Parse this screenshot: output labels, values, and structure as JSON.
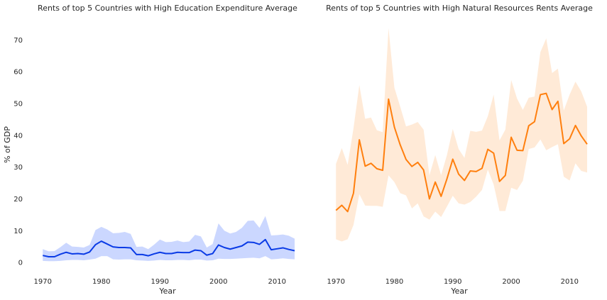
{
  "chart_data": [
    {
      "type": "line",
      "title": "Rents of top 5 Countries with High Education Expenditure Average",
      "xlabel": "Year",
      "ylabel": "% of GDP",
      "xlim": [
        1969,
        2013
      ],
      "ylim": [
        -4,
        77
      ],
      "xticks": [
        1970,
        1980,
        1990,
        2000,
        2010
      ],
      "yticks": [
        0,
        10,
        20,
        30,
        40,
        50,
        60,
        70
      ],
      "grid": false,
      "series": [
        {
          "color": "#0a3be6",
          "band_color": "#a9bcff",
          "x": [
            1970,
            1971,
            1972,
            1973,
            1974,
            1975,
            1976,
            1977,
            1978,
            1979,
            1980,
            1981,
            1982,
            1983,
            1984,
            1985,
            1986,
            1987,
            1988,
            1989,
            1990,
            1991,
            1992,
            1993,
            1994,
            1995,
            1996,
            1997,
            1998,
            1999,
            2000,
            2001,
            2002,
            2003,
            2004,
            2005,
            2006,
            2007,
            2008,
            2009,
            2010,
            2011,
            2012,
            2013
          ],
          "y": [
            2.2,
            1.8,
            1.8,
            2.6,
            3.2,
            2.7,
            2.8,
            2.6,
            3.3,
            5.6,
            6.7,
            5.8,
            4.9,
            4.7,
            4.7,
            4.6,
            2.5,
            2.5,
            2.1,
            2.7,
            3.2,
            2.8,
            2.8,
            3.2,
            3.1,
            3.1,
            3.9,
            3.7,
            2.3,
            2.8,
            5.5,
            4.7,
            4.2,
            4.7,
            5.2,
            6.4,
            6.3,
            5.7,
            7.2,
            4.0,
            4.3,
            4.6,
            4.1,
            3.7
          ],
          "lower": [
            0.5,
            0.4,
            0.4,
            0.5,
            0.7,
            0.8,
            0.8,
            0.7,
            0.9,
            1.2,
            2.0,
            2.0,
            1.0,
            0.9,
            1.0,
            1.0,
            0.7,
            0.6,
            0.5,
            0.6,
            0.8,
            0.7,
            0.7,
            0.8,
            0.8,
            0.7,
            0.9,
            0.9,
            0.6,
            0.7,
            1.2,
            1.1,
            1.1,
            1.2,
            1.3,
            1.4,
            1.5,
            1.3,
            2.0,
            1.0,
            1.1,
            1.3,
            1.1,
            1.0
          ],
          "upper": [
            4.2,
            3.5,
            3.6,
            4.8,
            6.2,
            5.0,
            4.9,
            4.7,
            5.5,
            10.2,
            11.2,
            10.4,
            9.2,
            9.3,
            9.6,
            9.0,
            4.9,
            5.0,
            4.2,
            5.6,
            7.2,
            6.4,
            6.5,
            6.9,
            6.4,
            6.6,
            8.7,
            8.2,
            4.7,
            5.8,
            12.3,
            10.0,
            9.1,
            9.6,
            10.9,
            13.1,
            13.2,
            10.9,
            14.6,
            8.5,
            8.6,
            8.8,
            8.4,
            7.5
          ]
        }
      ]
    },
    {
      "type": "line",
      "title": "Rents of top 5 Countries with High Natural Resources Rents Average",
      "xlabel": "Year",
      "ylabel": "",
      "xlim": [
        1969,
        2013
      ],
      "ylim": [
        -4,
        77
      ],
      "xticks": [
        1970,
        1980,
        1990,
        2000,
        2010
      ],
      "yticks": [],
      "grid": false,
      "series": [
        {
          "color": "#ff7f0e",
          "band_color": "#ffdcbd",
          "x": [
            1970,
            1971,
            1972,
            1973,
            1974,
            1975,
            1976,
            1977,
            1978,
            1979,
            1980,
            1981,
            1982,
            1983,
            1984,
            1985,
            1986,
            1987,
            1988,
            1989,
            1990,
            1991,
            1992,
            1993,
            1994,
            1995,
            1996,
            1997,
            1998,
            1999,
            2000,
            2001,
            2002,
            2003,
            2004,
            2005,
            2006,
            2007,
            2008,
            2009,
            2010,
            2011,
            2012,
            2013
          ],
          "y": [
            16.4,
            18.0,
            16.0,
            21.8,
            38.6,
            30.3,
            31.2,
            29.5,
            29.0,
            51.4,
            42.6,
            37.0,
            32.4,
            30.2,
            31.5,
            29.1,
            20.0,
            25.3,
            20.8,
            26.3,
            32.5,
            27.8,
            25.8,
            28.8,
            28.6,
            29.6,
            35.6,
            34.4,
            25.5,
            27.4,
            39.4,
            35.3,
            35.2,
            43.0,
            44.3,
            52.8,
            53.2,
            48.1,
            50.7,
            37.4,
            38.9,
            43.1,
            39.8,
            37.2
          ],
          "lower": [
            7.3,
            6.6,
            7.3,
            11.8,
            21.5,
            17.9,
            17.8,
            17.8,
            17.5,
            27.4,
            25.3,
            21.8,
            21.1,
            17.0,
            18.6,
            14.5,
            13.5,
            16.0,
            14.3,
            17.6,
            21.0,
            18.6,
            18.2,
            19.0,
            20.7,
            22.8,
            29.2,
            24.5,
            16.2,
            16.2,
            23.5,
            22.8,
            25.7,
            35.7,
            36.2,
            38.7,
            35.3,
            36.3,
            37.2,
            27.0,
            25.8,
            31.2,
            28.8,
            28.3
          ],
          "upper": [
            31.0,
            36.0,
            30.7,
            42.2,
            55.8,
            45.2,
            45.6,
            41.6,
            41.0,
            73.7,
            55.0,
            49.0,
            42.8,
            43.4,
            44.2,
            41.8,
            27.4,
            33.8,
            27.5,
            33.8,
            42.0,
            35.7,
            32.9,
            41.4,
            41.1,
            41.5,
            46.0,
            52.8,
            38.4,
            41.8,
            57.4,
            51.6,
            48.0,
            51.8,
            52.2,
            66.2,
            70.5,
            59.6,
            61.0,
            47.8,
            52.8,
            56.9,
            53.8,
            49.0
          ]
        }
      ]
    }
  ]
}
